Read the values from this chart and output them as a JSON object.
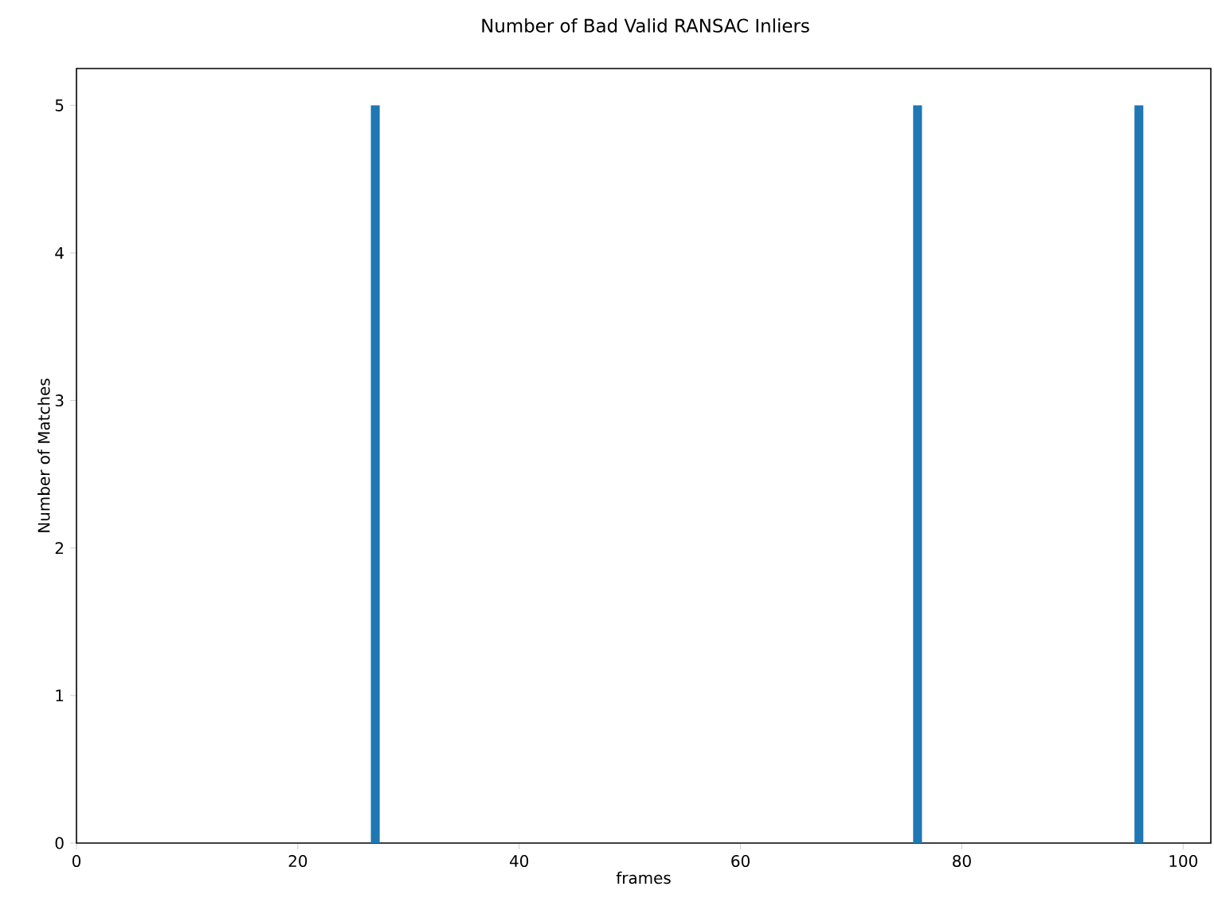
{
  "chart_data": {
    "type": "bar",
    "title": "Number of Bad Valid RANSAC Inliers",
    "xlabel": "frames",
    "ylabel": "Number of Matches",
    "x": [
      27,
      76,
      96
    ],
    "values": [
      5,
      5,
      5
    ],
    "color": "#1f77b4",
    "xlim": [
      0,
      102.5
    ],
    "ylim": [
      0,
      5.25
    ],
    "xticks": [
      0,
      20,
      40,
      60,
      80,
      100
    ],
    "yticks": [
      0,
      1,
      2,
      3,
      4,
      5
    ]
  }
}
